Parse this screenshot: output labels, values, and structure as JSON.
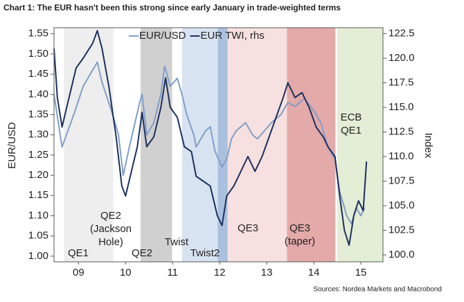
{
  "chart_data": {
    "type": "line",
    "title": "Chart 1: The EUR hasn't been this strong since early January in trade-weighted terms",
    "y_label": "EUR/USD",
    "y2_label": "Index",
    "source": "Sources: Nordea Markets and Macrobond",
    "xlim": [
      2008.98,
      2015.97
    ],
    "xticks": [
      {
        "value": 2009.5,
        "label": "09"
      },
      {
        "value": 2010.5,
        "label": "10"
      },
      {
        "value": 2011.5,
        "label": "11"
      },
      {
        "value": 2012.5,
        "label": "12"
      },
      {
        "value": 2013.5,
        "label": "13"
      },
      {
        "value": 2014.5,
        "label": "14"
      },
      {
        "value": 2015.5,
        "label": "15"
      }
    ],
    "ylim": [
      0.986,
      1.565
    ],
    "yticks": [
      {
        "value": 1.0,
        "label": "1.00"
      },
      1.05,
      {
        "value": 1.1,
        "label": "1.10"
      },
      1.15,
      {
        "value": 1.2,
        "label": "1.20"
      },
      1.25,
      {
        "value": 1.3,
        "label": "1.30"
      },
      1.35,
      {
        "value": 1.4,
        "label": "1.40"
      },
      1.45,
      {
        "value": 1.5,
        "label": "1.50"
      },
      1.55
    ],
    "y2lim": [
      99.3,
      123.1
    ],
    "y2ticks": [
      {
        "value": 100,
        "label": "100.0"
      },
      102.5,
      {
        "value": 105,
        "label": "105.0"
      },
      107.5,
      {
        "value": 110,
        "label": "110.0"
      },
      112.5,
      {
        "value": 115,
        "label": "115.0"
      },
      117.5,
      {
        "value": 120,
        "label": "120.0"
      },
      122.5
    ],
    "regions": [
      {
        "label": [
          "QE1"
        ],
        "start": 2009.19,
        "end": 2010.24,
        "color": "#eeeeee"
      },
      {
        "label": [
          "QE2"
        ],
        "start": 2010.82,
        "end": 2011.49,
        "color": "#d0d0d0"
      },
      {
        "label": [
          "Twist"
        ],
        "start": 2011.7,
        "end": 2012.46,
        "color": "#d8e3f1"
      },
      {
        "label": [
          "Twist2"
        ],
        "start": 2012.46,
        "end": 2012.67,
        "color": "#a9c0de"
      },
      {
        "label": [
          "QE3"
        ],
        "start": 2012.67,
        "end": 2013.93,
        "color": "#f7e0e0"
      },
      {
        "label": [
          "QE3",
          "(taper)"
        ],
        "start": 2013.93,
        "end": 2014.96,
        "color": "#e4a9a9"
      },
      {
        "label": [
          "ECB",
          "QE1"
        ],
        "start": 2015.0,
        "end": 2015.97,
        "color": "#e4edd5"
      }
    ],
    "annotations": [
      [
        "QE2",
        "(Jackson",
        "Hole)"
      ]
    ],
    "series": [
      {
        "name": "EUR/USD",
        "color": "#7f9fc8",
        "x": [
          2008.98,
          2009.15,
          2009.4,
          2009.6,
          2009.85,
          2009.9,
          2010.0,
          2010.2,
          2010.35,
          2010.45,
          2010.6,
          2010.8,
          2010.85,
          2010.95,
          2011.1,
          2011.25,
          2011.33,
          2011.45,
          2011.6,
          2011.7,
          2011.8,
          2011.95,
          2012.0,
          2012.2,
          2012.3,
          2012.4,
          2012.55,
          2012.65,
          2012.75,
          2012.85,
          2013.05,
          2013.2,
          2013.3,
          2013.45,
          2013.6,
          2013.8,
          2013.95,
          2014.1,
          2014.3,
          2014.5,
          2014.65,
          2014.8,
          2014.95,
          2015.05,
          2015.2,
          2015.3,
          2015.4,
          2015.5,
          2015.58
        ],
        "values": [
          1.4,
          1.27,
          1.35,
          1.42,
          1.47,
          1.48,
          1.43,
          1.36,
          1.3,
          1.2,
          1.28,
          1.38,
          1.4,
          1.3,
          1.33,
          1.4,
          1.47,
          1.42,
          1.44,
          1.4,
          1.35,
          1.3,
          1.27,
          1.31,
          1.32,
          1.26,
          1.22,
          1.24,
          1.29,
          1.31,
          1.33,
          1.3,
          1.29,
          1.31,
          1.33,
          1.35,
          1.38,
          1.37,
          1.39,
          1.36,
          1.33,
          1.27,
          1.24,
          1.16,
          1.1,
          1.08,
          1.12,
          1.1,
          1.12
        ]
      },
      {
        "name": "EUR TWI, rhs",
        "color": "#1b2f5e",
        "axis": "y2",
        "x": [
          2008.98,
          2009.05,
          2009.15,
          2009.3,
          2009.45,
          2009.6,
          2009.8,
          2009.9,
          2010.0,
          2010.15,
          2010.3,
          2010.42,
          2010.5,
          2010.6,
          2010.75,
          2010.85,
          2010.95,
          2011.1,
          2011.25,
          2011.35,
          2011.45,
          2011.6,
          2011.75,
          2011.9,
          2012.0,
          2012.15,
          2012.3,
          2012.45,
          2012.55,
          2012.65,
          2012.8,
          2012.9,
          2013.0,
          2013.1,
          2013.25,
          2013.4,
          2013.55,
          2013.7,
          2013.85,
          2013.95,
          2014.1,
          2014.25,
          2014.4,
          2014.55,
          2014.7,
          2014.8,
          2014.95,
          2015.05,
          2015.15,
          2015.25,
          2015.35,
          2015.45,
          2015.55,
          2015.62
        ],
        "values": [
          121,
          116,
          113,
          116,
          119,
          120,
          121.5,
          122.8,
          121,
          117,
          112,
          107,
          106,
          108,
          111,
          114.5,
          111,
          112,
          115,
          118,
          115,
          114,
          111,
          110.5,
          108,
          107.5,
          107,
          104,
          103,
          106,
          107,
          108,
          109,
          110,
          108.5,
          110,
          112,
          114,
          116,
          117.5,
          116,
          116.5,
          115,
          113,
          112,
          111,
          110,
          106,
          102.5,
          101,
          104,
          105.5,
          104.5,
          109.5
        ]
      }
    ]
  }
}
